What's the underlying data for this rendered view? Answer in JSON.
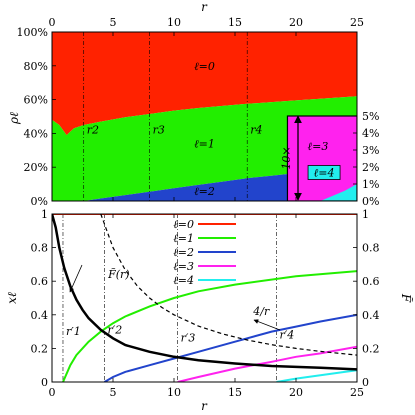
{
  "chart_data": [
    {
      "type": "area",
      "title": "",
      "xlabel": "r",
      "ylabel": "ρℓ",
      "xlim": [
        0,
        25
      ],
      "ylim": [
        0,
        100
      ],
      "x_ticks": [
        "0",
        "5",
        "10",
        "15",
        "20",
        "25"
      ],
      "y_ticks": [
        "0%",
        "20%",
        "40%",
        "60%",
        "80%",
        "100%"
      ],
      "inset_ticks": [
        "0%",
        "1%",
        "2%",
        "3%",
        "4%",
        "5%"
      ],
      "inset_range": [
        0,
        5
      ],
      "inset_xlim": [
        19.3,
        25
      ],
      "zoom_label": "10×",
      "annotations": [
        "r2",
        "r3",
        "r4"
      ],
      "annotation_x": [
        2.6,
        8.0,
        16.0
      ],
      "series": [
        {
          "name": "ℓ=0",
          "color": "#ff2200",
          "x": [
            0,
            0.6,
            1.2,
            1.8,
            2.6,
            4,
            6,
            8,
            10,
            12,
            14,
            16,
            18,
            20,
            22,
            25
          ],
          "values": [
            100,
            100,
            100,
            100,
            100,
            100,
            100,
            100,
            100,
            100,
            100,
            100,
            100,
            100,
            100,
            100
          ]
        },
        {
          "name": "ℓ=1",
          "color": "#22ee00",
          "x": [
            0,
            0.6,
            1.2,
            1.8,
            2.6,
            4,
            6,
            8,
            10,
            12,
            14,
            16,
            18,
            20,
            22,
            25
          ],
          "values": [
            48,
            45,
            39,
            43,
            45,
            47,
            49.5,
            51.5,
            53.5,
            55,
            56.3,
            57.5,
            58.5,
            59.5,
            60.5,
            62
          ]
        },
        {
          "name": "ℓ=2",
          "color": "#2244cc",
          "x": [
            0,
            0.6,
            1.2,
            1.8,
            2.6,
            4,
            6,
            8,
            10,
            12,
            14,
            16,
            18,
            20,
            22,
            25
          ],
          "values": [
            0,
            0,
            0,
            0,
            0,
            1.5,
            3.5,
            5.5,
            7.5,
            9.5,
            11.5,
            13.5,
            15,
            16.5,
            18,
            20
          ]
        }
      ],
      "inset_series": [
        {
          "name": "ℓ=3",
          "color": "#ff22ee",
          "x": [
            19.3,
            20,
            21,
            22,
            23,
            24,
            25
          ],
          "values": [
            5,
            5,
            5,
            5,
            5,
            5,
            5
          ]
        },
        {
          "name": "ℓ=4",
          "color": "#22eeee",
          "x": [
            19.3,
            20,
            21,
            22,
            23,
            24,
            25
          ],
          "values": [
            0,
            0,
            0,
            0,
            0.3,
            0.6,
            1
          ]
        }
      ],
      "series_labels": [
        {
          "text": "ℓ=0",
          "x": 12.5,
          "y": 80
        },
        {
          "text": "ℓ=1",
          "x": 12.5,
          "y": 34
        },
        {
          "text": "ℓ=2",
          "x": 12.5,
          "y": 6
        },
        {
          "text": "ℓ=3",
          "x": 21.8,
          "y": 21
        },
        {
          "text": "ℓ=4",
          "x": 22.3,
          "y": 9.2
        }
      ]
    },
    {
      "type": "line",
      "title": "",
      "xlabel": "r",
      "ylabel": "xℓ",
      "y2label": "F̃",
      "xlim": [
        0,
        25
      ],
      "ylim": [
        0,
        1
      ],
      "y2lim": [
        0,
        1
      ],
      "x_ticks": [
        "0",
        "5",
        "10",
        "15",
        "20",
        "25"
      ],
      "y_ticks": [
        "0",
        "0.2",
        "0.4",
        "0.6",
        "0.8",
        "1"
      ],
      "y2_ticks": [
        "0",
        "0.2",
        "0.4",
        "0.6",
        "0.8",
        "1"
      ],
      "legend": "top-center",
      "annotations": [
        "r′1",
        "r′2",
        "r′3",
        "r′4"
      ],
      "annotation_x": [
        0.9,
        4.3,
        10.3,
        18.4
      ],
      "series": [
        {
          "name": "ℓ=0",
          "color": "#ff2200",
          "x": [
            0,
            25
          ],
          "values": [
            1,
            1
          ]
        },
        {
          "name": "ℓ=1",
          "color": "#22ee00",
          "x": [
            0.9,
            1.5,
            2,
            3,
            4,
            5,
            6,
            8,
            10,
            12,
            15,
            20,
            25
          ],
          "values": [
            0,
            0.1,
            0.16,
            0.24,
            0.3,
            0.35,
            0.39,
            0.45,
            0.5,
            0.54,
            0.58,
            0.63,
            0.66
          ]
        },
        {
          "name": "ℓ=2",
          "color": "#2244cc",
          "x": [
            4.3,
            5,
            6,
            8,
            10,
            12,
            15,
            18,
            20,
            22,
            25
          ],
          "values": [
            0,
            0.03,
            0.06,
            0.1,
            0.14,
            0.18,
            0.24,
            0.3,
            0.33,
            0.36,
            0.4
          ]
        },
        {
          "name": "ℓ=3",
          "color": "#ff22ee",
          "x": [
            10.3,
            12,
            15,
            18,
            20,
            22,
            25
          ],
          "values": [
            0,
            0.03,
            0.08,
            0.12,
            0.15,
            0.17,
            0.21
          ]
        },
        {
          "name": "ℓ=4",
          "color": "#22eeee",
          "x": [
            18.4,
            20,
            22,
            24,
            25
          ],
          "values": [
            0,
            0.02,
            0.04,
            0.06,
            0.07
          ]
        }
      ],
      "extra_curves": [
        {
          "label": "F̃(r)",
          "color": "#000000",
          "style": "solid-thick",
          "x": [
            0,
            0.3,
            0.6,
            1,
            1.5,
            2,
            2.5,
            3,
            4,
            5,
            6,
            8,
            10,
            12,
            15,
            18,
            20,
            22,
            25
          ],
          "values": [
            1,
            0.92,
            0.8,
            0.68,
            0.57,
            0.49,
            0.43,
            0.38,
            0.31,
            0.26,
            0.22,
            0.18,
            0.15,
            0.13,
            0.11,
            0.095,
            0.09,
            0.085,
            0.075
          ]
        },
        {
          "label": "4/r",
          "color": "#000000",
          "style": "dashed",
          "x": [
            4,
            5,
            6,
            7,
            8,
            9,
            10,
            12,
            14,
            16,
            18,
            20,
            22,
            25
          ],
          "values": [
            1,
            0.8,
            0.667,
            0.571,
            0.5,
            0.444,
            0.4,
            0.333,
            0.286,
            0.25,
            0.222,
            0.2,
            0.182,
            0.16
          ]
        }
      ],
      "curve_labels": [
        {
          "text": "F̃(r)",
          "x": 4.6,
          "y": 0.62
        },
        {
          "text": "4/r",
          "x": 16.5,
          "y": 0.4
        }
      ]
    }
  ]
}
